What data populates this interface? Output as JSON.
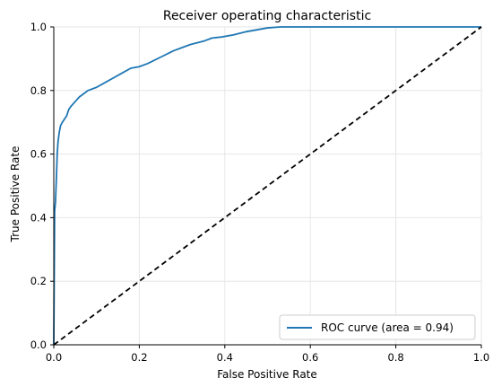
{
  "chart_data": {
    "type": "line",
    "title": "Receiver operating characteristic",
    "xlabel": "False Positive Rate",
    "ylabel": "True Positive Rate",
    "xlim": [
      0.0,
      1.0
    ],
    "ylim": [
      0.0,
      1.0
    ],
    "xticks": [
      "0.0",
      "0.2",
      "0.4",
      "0.6",
      "0.8",
      "1.0"
    ],
    "yticks": [
      "0.0",
      "0.2",
      "0.4",
      "0.6",
      "0.8",
      "1.0"
    ],
    "grid": true,
    "legend_position": "lower-right",
    "series": [
      {
        "name": "ROC curve (area = 0.94)",
        "color": "#1f77b4",
        "style": "solid",
        "x": [
          0.0,
          0.002,
          0.004,
          0.006,
          0.008,
          0.01,
          0.013,
          0.016,
          0.02,
          0.025,
          0.03,
          0.035,
          0.04,
          0.05,
          0.06,
          0.07,
          0.08,
          0.1,
          0.12,
          0.14,
          0.16,
          0.18,
          0.2,
          0.22,
          0.25,
          0.28,
          0.3,
          0.32,
          0.35,
          0.37,
          0.39,
          0.42,
          0.45,
          0.5,
          0.53,
          0.6,
          0.7,
          0.8,
          0.9,
          1.0
        ],
        "y": [
          0.0,
          0.42,
          0.45,
          0.52,
          0.6,
          0.64,
          0.67,
          0.69,
          0.7,
          0.71,
          0.72,
          0.74,
          0.75,
          0.765,
          0.78,
          0.79,
          0.8,
          0.81,
          0.825,
          0.84,
          0.855,
          0.87,
          0.875,
          0.885,
          0.905,
          0.925,
          0.935,
          0.945,
          0.955,
          0.965,
          0.968,
          0.975,
          0.985,
          0.997,
          1.0,
          1.0,
          1.0,
          1.0,
          1.0,
          1.0
        ]
      },
      {
        "color": "#000000",
        "style": "dashed",
        "x": [
          0.0,
          1.0
        ],
        "y": [
          0.0,
          1.0
        ]
      }
    ]
  }
}
